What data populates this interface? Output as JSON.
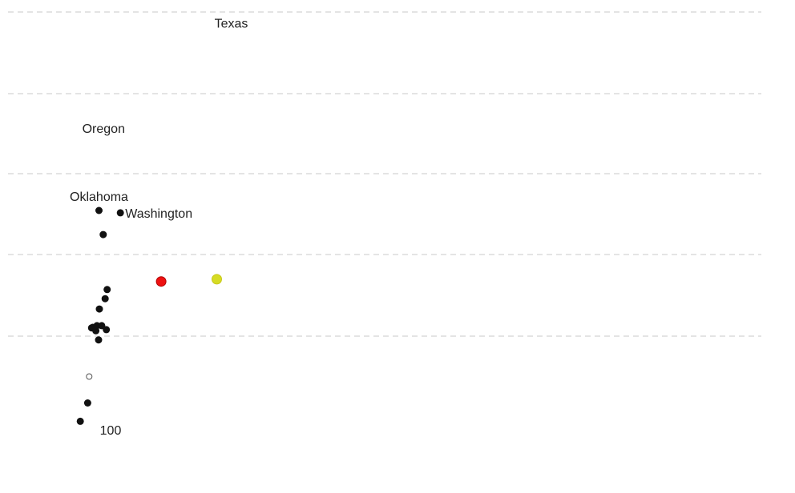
{
  "chart_data": {
    "type": "scatter",
    "title": "",
    "xlabel": "",
    "ylabel": "",
    "grid": true,
    "legend": "none",
    "x_tick_labels": [
      {
        "x": 100,
        "text": "100"
      }
    ],
    "points": [
      {
        "x": 22,
        "y": 2.4,
        "label": ""
      },
      {
        "x": 41,
        "y": 4.0,
        "label": ""
      },
      {
        "x": 45,
        "y": 6.3,
        "label": "",
        "hollow": true
      },
      {
        "x": 51,
        "y": 10.55,
        "label": ""
      },
      {
        "x": 54,
        "y": 10.6,
        "label": ""
      },
      {
        "x": 62,
        "y": 10.3,
        "label": ""
      },
      {
        "x": 65,
        "y": 10.75,
        "label": ""
      },
      {
        "x": 69,
        "y": 9.5,
        "label": ""
      },
      {
        "x": 71,
        "y": 12.2,
        "label": ""
      },
      {
        "x": 77,
        "y": 10.75,
        "label": ""
      },
      {
        "x": 86,
        "y": 13.1,
        "label": ""
      },
      {
        "x": 89,
        "y": 10.4,
        "label": ""
      },
      {
        "x": 91,
        "y": 13.9,
        "label": ""
      },
      {
        "x": 70,
        "y": 20.8,
        "label": "Oklahoma",
        "label_pos": "above"
      },
      {
        "x": 81,
        "y": 18.7,
        "label": ""
      },
      {
        "x": 125,
        "y": 20.6,
        "label": "Washington",
        "label_pos": "right"
      },
      {
        "x": 82,
        "y": 28.0,
        "label": "Oregon",
        "label_pos": "label-only"
      },
      {
        "x": 410,
        "y": 37.2,
        "label": "Texas",
        "label_pos": "label-only"
      },
      {
        "x": 230,
        "y": 14.6,
        "label": "",
        "color": "#ee1111"
      },
      {
        "x": 373,
        "y": 14.8,
        "label": "",
        "color": "#d6dc24"
      }
    ]
  }
}
